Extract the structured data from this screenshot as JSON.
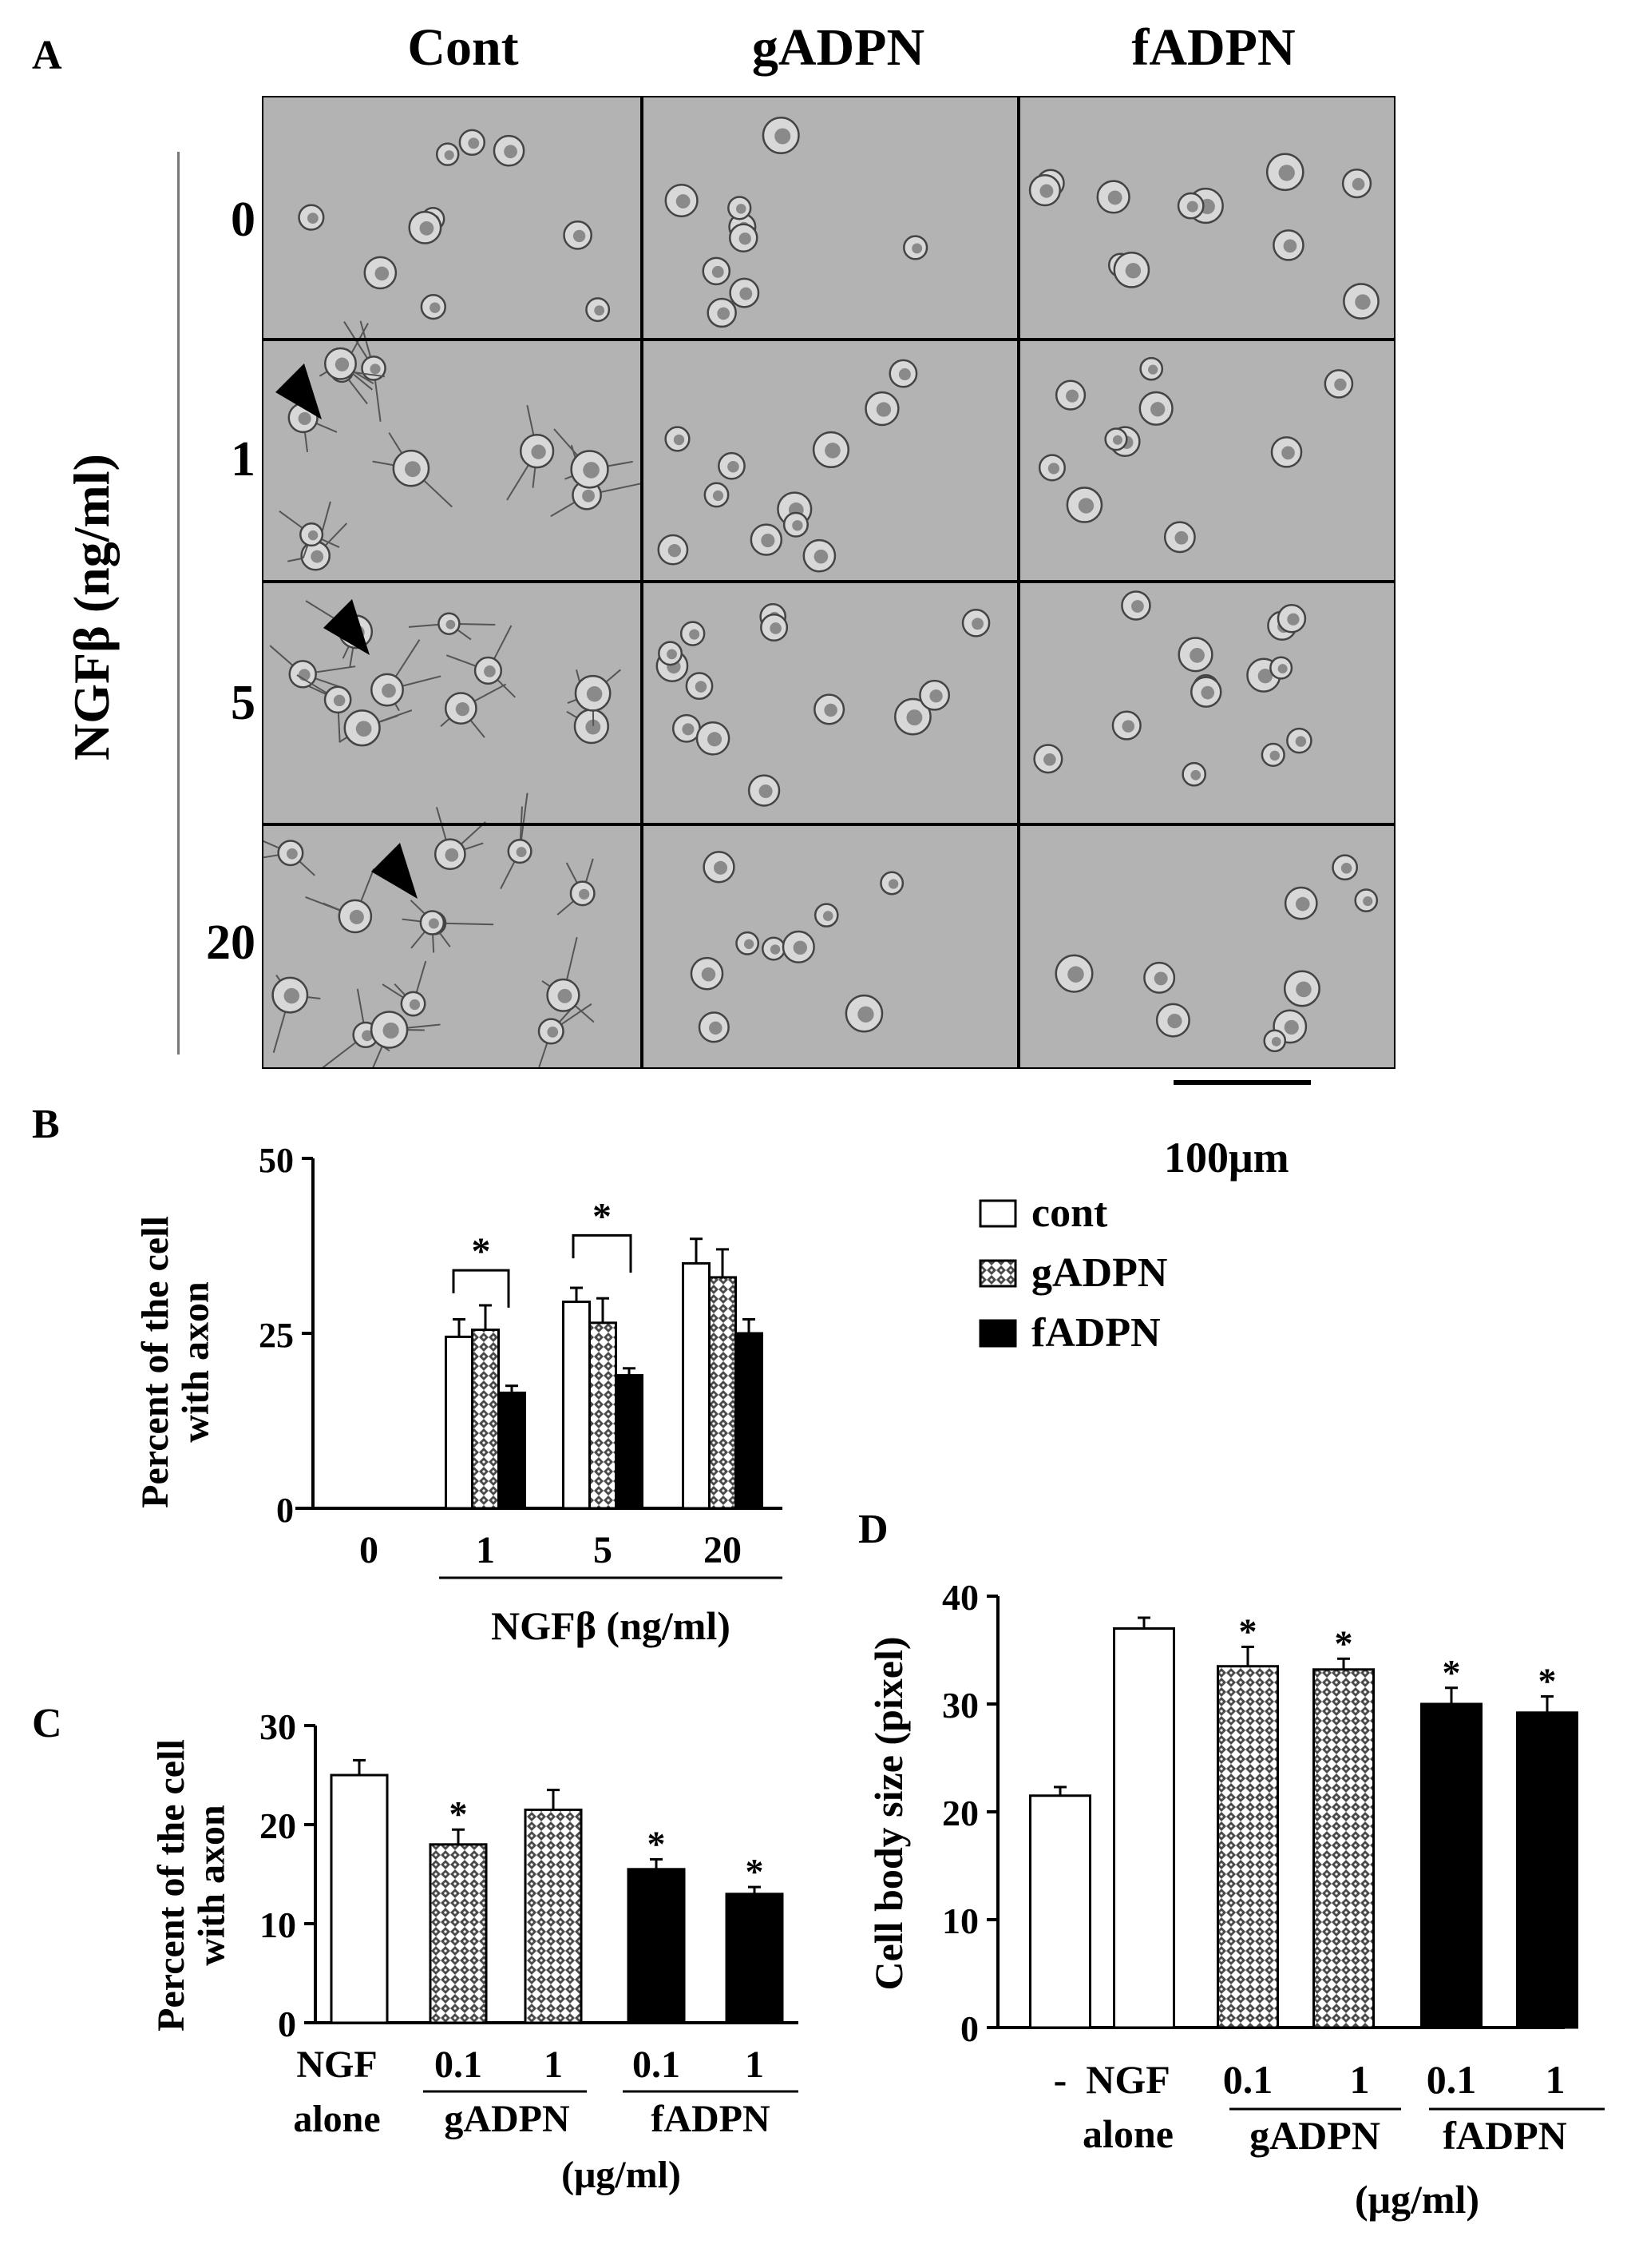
{
  "panel_labels": {
    "a": "A",
    "b": "B",
    "c": "C",
    "d": "D"
  },
  "panel_a": {
    "columns": [
      "Cont",
      "gADPN",
      "fADPN"
    ],
    "rows": [
      "0",
      "1",
      "5",
      "20"
    ],
    "row_axis_label": "NGFβ (ng/ml)",
    "scale_bar_label": "100μm",
    "arrowheads": [
      {
        "col": 0,
        "row": 1
      },
      {
        "col": 0,
        "row": 2
      },
      {
        "col": 0,
        "row": 3
      }
    ],
    "colors": {
      "background_gray": "#b3b3b3",
      "cell": "#d8d8d8",
      "cell_edge": "#444444"
    }
  },
  "chart_data": [
    {
      "id": "B",
      "type": "bar",
      "categories": [
        "0",
        "1",
        "5",
        "20"
      ],
      "series": [
        {
          "name": "cont",
          "values": [
            0,
            24.5,
            29.5,
            35
          ],
          "errors": [
            0,
            2.5,
            2,
            3.5
          ],
          "fill": "white"
        },
        {
          "name": "gADPN",
          "values": [
            0,
            25.5,
            26.5,
            33
          ],
          "errors": [
            0,
            3.5,
            3.5,
            4
          ],
          "fill": "hatched"
        },
        {
          "name": "fADPN",
          "values": [
            0,
            16.5,
            19,
            25
          ],
          "errors": [
            0,
            1,
            1,
            2
          ],
          "fill": "black"
        }
      ],
      "ylabel": "Percent of the cell with axon",
      "xlabel": "NGFβ (ng/ml)",
      "ylim": [
        0,
        50
      ],
      "yticks": [
        "0",
        "25",
        "50"
      ],
      "significance": [
        "*",
        "*"
      ],
      "legend": [
        "cont",
        "gADPN",
        "fADPN"
      ],
      "legend_position": "right"
    },
    {
      "id": "C",
      "type": "bar",
      "categories": [
        "NGF alone",
        "0.1",
        "1",
        "0.1",
        "1"
      ],
      "category_lines": [
        [
          "NGF",
          "alone"
        ],
        [
          "0.1"
        ],
        [
          "1"
        ],
        [
          "0.1"
        ],
        [
          "1"
        ]
      ],
      "values": [
        25,
        18,
        21.5,
        15.5,
        13
      ],
      "errors": [
        1.5,
        1.5,
        2,
        1,
        0.7
      ],
      "fills": [
        "white",
        "hatched",
        "hatched",
        "black",
        "black"
      ],
      "significance": [
        "",
        "*",
        "",
        "*",
        "*"
      ],
      "group_labels": [
        "gADPN",
        "fADPN"
      ],
      "unit_label": "(μg/ml)",
      "ylabel": "Percent of the cell with axon",
      "ylim": [
        0,
        30
      ],
      "yticks": [
        "0",
        "10",
        "20",
        "30"
      ]
    },
    {
      "id": "D",
      "type": "bar",
      "categories": [
        "-",
        "NGF alone",
        "0.1",
        "1",
        "0.1",
        "1"
      ],
      "category_lines": [
        [
          "-"
        ],
        [
          "NGF",
          "alone"
        ],
        [
          "0.1"
        ],
        [
          "1"
        ],
        [
          "0.1"
        ],
        [
          "1"
        ]
      ],
      "values": [
        21.5,
        37,
        33.5,
        33.2,
        30,
        29.2
      ],
      "errors": [
        0.8,
        1,
        1.8,
        1,
        1.5,
        1.5
      ],
      "fills": [
        "white",
        "white",
        "hatched",
        "hatched",
        "black",
        "black"
      ],
      "significance": [
        "",
        "",
        "*",
        "*",
        "*",
        "*"
      ],
      "group_labels": [
        "gADPN",
        "fADPN"
      ],
      "unit_label": "(μg/ml)",
      "ylabel": "Cell body size (pixel)",
      "ylim": [
        0,
        40
      ],
      "yticks": [
        "0",
        "10",
        "20",
        "30",
        "40"
      ]
    }
  ]
}
